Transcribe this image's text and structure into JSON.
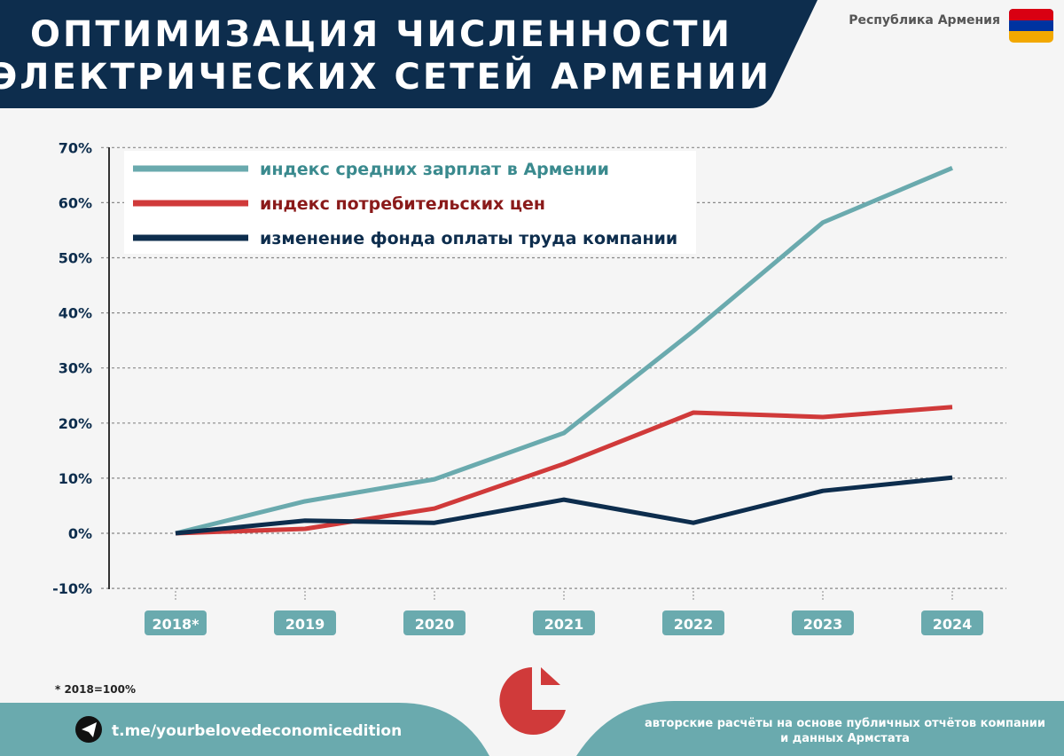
{
  "header": {
    "title_line1": "ОПТИМИЗАЦИЯ ЧИСЛЕННОСТИ",
    "title_line2": "ЭЛЕКТРИЧЕСКИХ СЕТЕЙ АРМЕНИИ",
    "country": "Республика Армения"
  },
  "colors": {
    "navy": "#0d2d4d",
    "teal": "#6aaaae",
    "red": "#d03a3a",
    "flag": [
      "#d90012",
      "#0033a0",
      "#f2a800"
    ]
  },
  "chart_data": {
    "type": "line",
    "categories": [
      "2018*",
      "2019",
      "2020",
      "2021",
      "2022",
      "2023",
      "2024"
    ],
    "ylim": [
      -10,
      70
    ],
    "yticks": [
      "-10%",
      "0%",
      "10%",
      "20%",
      "30%",
      "40%",
      "50%",
      "60%",
      "70%"
    ],
    "ytick_values": [
      -10,
      0,
      10,
      20,
      30,
      40,
      50,
      60,
      70
    ],
    "grid": true,
    "legend_position": "top-left",
    "series": [
      {
        "name": "индекс средних зарплат в Армении",
        "color": "#6aaaae",
        "text_color": "#3a8a8e",
        "values": [
          0,
          5.8,
          9.8,
          18.2,
          36.7,
          56.4,
          66.3
        ]
      },
      {
        "name": "индекс потребительских цен",
        "color": "#d03a3a",
        "text_color": "#8a1a1a",
        "values": [
          0,
          0.8,
          4.5,
          12.6,
          21.9,
          21.1,
          22.9
        ]
      },
      {
        "name": "изменение фонда оплаты труда компании",
        "color": "#0d2d4d",
        "text_color": "#0d2d4d",
        "values": [
          0,
          2.3,
          1.9,
          6.1,
          1.9,
          7.7,
          10.1
        ]
      }
    ]
  },
  "footnote": "* 2018=100%",
  "footer": {
    "link": "t.me/yourbelovedeconomicedition",
    "source_line1": "авторские расчёты на основе публичных отчётов компании",
    "source_line2": "и данных Армстата"
  }
}
